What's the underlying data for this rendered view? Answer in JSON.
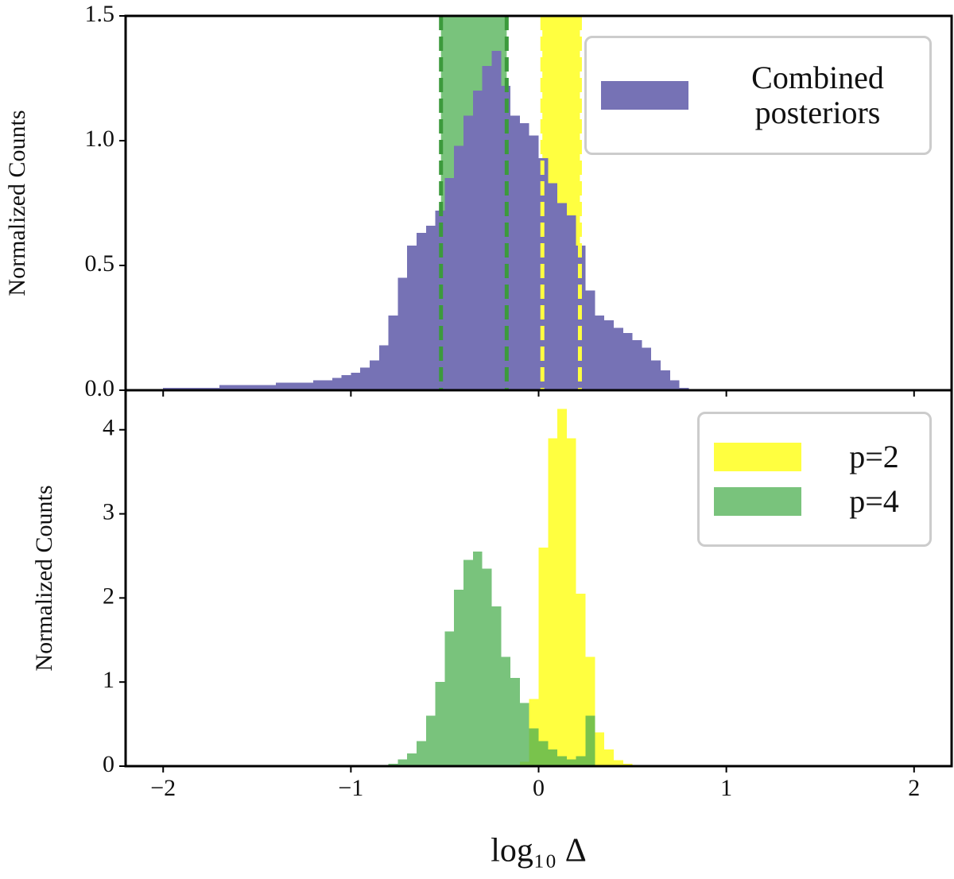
{
  "chart_data": [
    {
      "type": "histogram",
      "ylabel": "Normalized Counts",
      "xlim": [
        -2.2,
        2.2
      ],
      "xticks": [
        {
          "value": -2,
          "label": "−2"
        },
        {
          "value": -1,
          "label": "−1"
        },
        0,
        1,
        2
      ],
      "ylim": [
        0,
        1.5
      ],
      "yticks": [
        {
          "value": 0,
          "label": "0.0"
        },
        {
          "value": 0.5,
          "label": "0.5"
        },
        {
          "value": 1,
          "label": "1.0"
        },
        {
          "value": 1.5,
          "label": "1.5"
        }
      ],
      "legend": "upper right",
      "bands": [
        {
          "color": "#4caf50",
          "line_color": "#3c9a3c",
          "x0": -0.52,
          "x1": -0.17
        },
        {
          "color": "#ffff00",
          "line_color": "#ffff40",
          "x0": 0.02,
          "x1": 0.22
        }
      ],
      "series": [
        {
          "name": "Combined posteriors",
          "color": "#7672b5",
          "bins": [
            -2.0,
            -1.95,
            -1.9,
            -1.85,
            -1.8,
            -1.75,
            -1.7,
            -1.65,
            -1.6,
            -1.55,
            -1.5,
            -1.45,
            -1.4,
            -1.35,
            -1.3,
            -1.25,
            -1.2,
            -1.15,
            -1.1,
            -1.05,
            -1.0,
            -0.95,
            -0.9,
            -0.85,
            -0.8,
            -0.75,
            -0.7,
            -0.65,
            -0.6,
            -0.55,
            -0.5,
            -0.45,
            -0.4,
            -0.35,
            -0.3,
            -0.25,
            -0.2,
            -0.15,
            -0.1,
            -0.05,
            0,
            0.05,
            0.1,
            0.15,
            0.2,
            0.25,
            0.3,
            0.35,
            0.4,
            0.45,
            0.5,
            0.55,
            0.6,
            0.65,
            0.7,
            0.75,
            0.8
          ],
          "values": [
            0.01,
            0.01,
            0.01,
            0.01,
            0.01,
            0.01,
            0.02,
            0.02,
            0.02,
            0.02,
            0.02,
            0.02,
            0.03,
            0.03,
            0.03,
            0.03,
            0.04,
            0.04,
            0.05,
            0.06,
            0.07,
            0.09,
            0.12,
            0.18,
            0.3,
            0.45,
            0.58,
            0.63,
            0.66,
            0.72,
            0.85,
            0.98,
            1.1,
            1.2,
            1.3,
            1.36,
            1.22,
            1.1,
            1.07,
            1.02,
            0.93,
            0.83,
            0.75,
            0.7,
            0.58,
            0.4,
            0.3,
            0.28,
            0.25,
            0.23,
            0.2,
            0.17,
            0.12,
            0.08,
            0.04,
            0.01
          ]
        }
      ]
    },
    {
      "type": "histogram",
      "xlabel": "log₁₀ Δ",
      "ylabel": "Normalized Counts",
      "xlim": [
        -2.2,
        2.2
      ],
      "xticks": [
        {
          "value": -2,
          "label": "−2"
        },
        {
          "value": -1,
          "label": "−1"
        },
        0,
        1,
        2
      ],
      "ylim": [
        0,
        4.47
      ],
      "yticks": [
        0,
        1,
        2,
        3,
        4
      ],
      "legend": "upper right",
      "series": [
        {
          "name": "p=2",
          "color": "#ffff00",
          "bins": [
            -0.1,
            -0.05,
            0,
            0.05,
            0.1,
            0.15,
            0.2,
            0.25,
            0.3,
            0.35,
            0.4,
            0.45,
            0.5
          ],
          "values": [
            0.05,
            0.8,
            2.6,
            3.9,
            4.25,
            3.9,
            2.05,
            1.3,
            0.4,
            0.2,
            0.07,
            0.03
          ]
        },
        {
          "name": "p=4",
          "color": "#4caf50",
          "bins": [
            -0.8,
            -0.75,
            -0.7,
            -0.65,
            -0.6,
            -0.55,
            -0.5,
            -0.45,
            -0.4,
            -0.35,
            -0.3,
            -0.25,
            -0.2,
            -0.15,
            -0.1,
            -0.05,
            0,
            0.05,
            0.1,
            0.15,
            0.2,
            0.25,
            0.3
          ],
          "values": [
            0.03,
            0.08,
            0.15,
            0.3,
            0.6,
            1.0,
            1.6,
            2.1,
            2.45,
            2.55,
            2.35,
            1.9,
            1.3,
            1.05,
            0.75,
            0.45,
            0.3,
            0.2,
            0.12,
            0.08,
            0.12,
            0.6
          ]
        }
      ]
    }
  ]
}
